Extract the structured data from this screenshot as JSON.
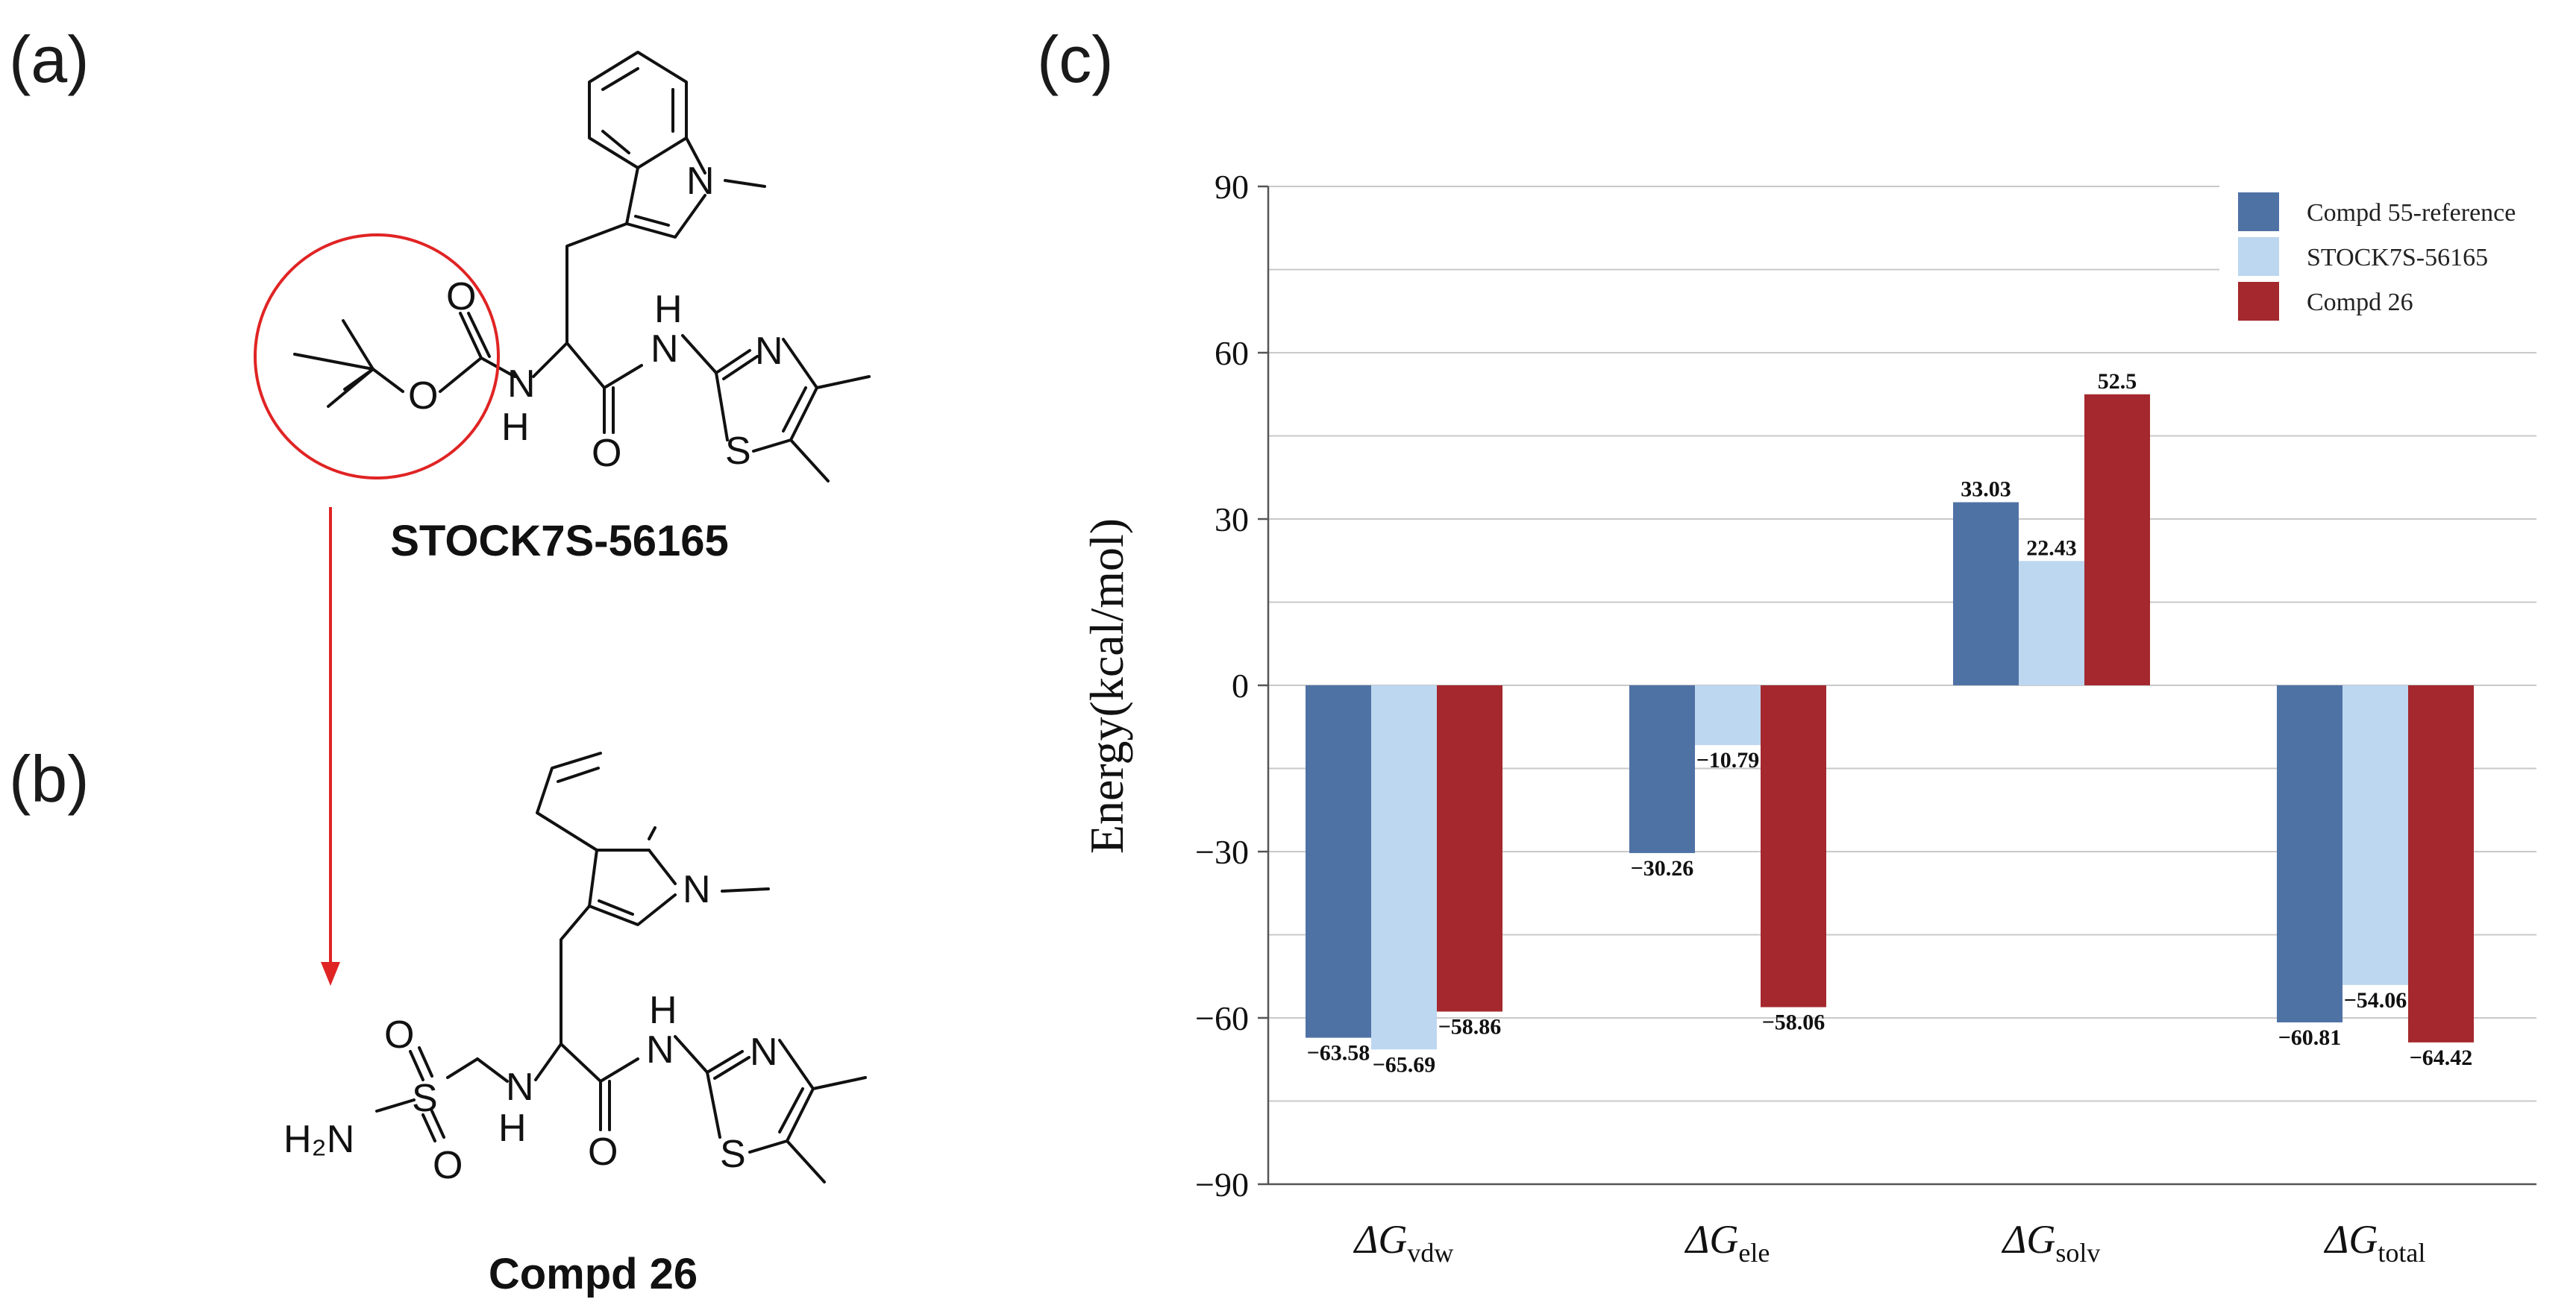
{
  "panels": {
    "a": "(a)",
    "b": "(b)",
    "c": "(c)"
  },
  "compounds": {
    "top_name": "STOCK7S-56165",
    "bottom_name": "Compd 26"
  },
  "atoms": {
    "top": {
      "N_indole": "N",
      "O_carbonyl": "O",
      "O_ester": "O",
      "N_amine": "N",
      "H_amine": "H",
      "O_amide": "O",
      "H_amide": "H",
      "N_amide": "N",
      "N_thiazole": "N",
      "S_thiazole": "S"
    },
    "bottom": {
      "N_indole": "N",
      "O_sulfonyl_top": "O",
      "S_sulfonyl": "S",
      "O_sulfonyl_bottom": "O",
      "NH2": "H₂N",
      "N_amine": "N",
      "H_amine": "H",
      "O_amide": "O",
      "H_amide": "H",
      "N_amide": "N",
      "N_thiazole": "N",
      "S_thiazole": "S"
    }
  },
  "colors": {
    "series1": "#4f72a5",
    "series2": "#bdd7f0",
    "series3": "#a4282d",
    "highlight": "#e02424",
    "arrow": "#e02424"
  },
  "chart_data": {
    "type": "bar",
    "ylabel": "Energy(kcal/mol)",
    "ylim": [
      -90,
      90
    ],
    "yticks": [
      90,
      60,
      30,
      0,
      -30,
      -60,
      -90
    ],
    "grid_step": 15,
    "legend_position": "top-right",
    "categories": [
      {
        "symbol": "ΔG",
        "sub": "vdw"
      },
      {
        "symbol": "ΔG",
        "sub": "ele"
      },
      {
        "symbol": "ΔG",
        "sub": "solv"
      },
      {
        "symbol": "ΔG",
        "sub": "total"
      }
    ],
    "series": [
      {
        "name": "Compd 55-reference",
        "values": [
          -63.58,
          -30.26,
          33.03,
          -60.81
        ],
        "labels": [
          "−63.58",
          "−30.26",
          "33.03",
          "−60.81"
        ]
      },
      {
        "name": "STOCK7S-56165",
        "values": [
          -65.69,
          -10.79,
          22.43,
          -54.06
        ],
        "labels": [
          "−65.69",
          "−10.79",
          "22.43",
          "−54.06"
        ]
      },
      {
        "name": "Compd 26",
        "values": [
          -58.86,
          -58.06,
          52.5,
          -64.42
        ],
        "labels": [
          "−58.86",
          "−58.06",
          "52.5",
          "−64.42"
        ]
      }
    ]
  }
}
